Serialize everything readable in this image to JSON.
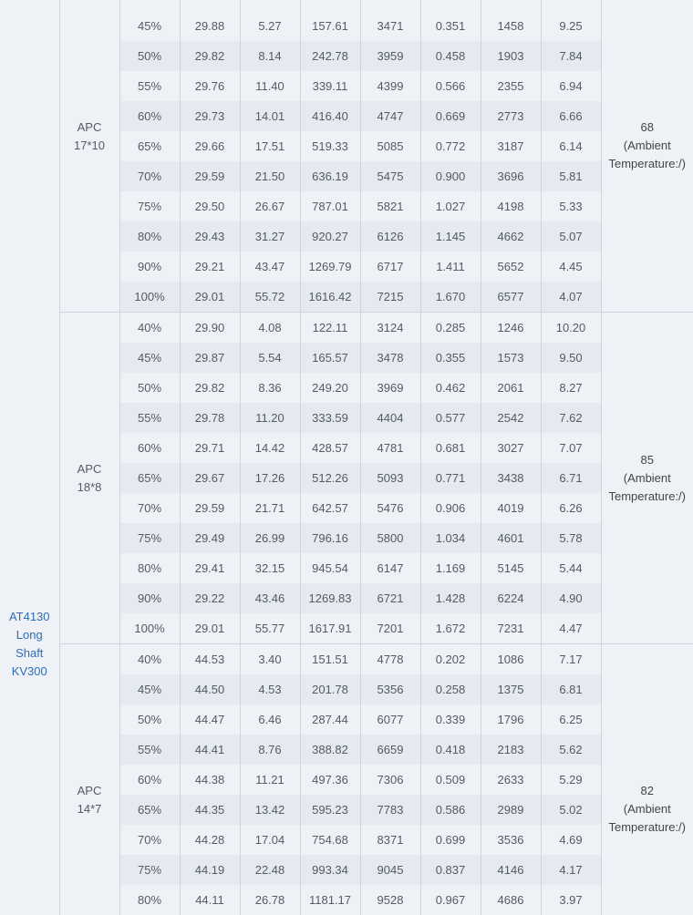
{
  "model": [
    "AT4130",
    "Long",
    "Shaft",
    "KV300"
  ],
  "groups": [
    {
      "prop": [
        "APC",
        "17*10"
      ],
      "temperature": [
        "68",
        "(Ambient",
        "Temperature:/)"
      ],
      "rows": [
        [
          "45%",
          "29.88",
          "5.27",
          "157.61",
          "3471",
          "0.351",
          "1458",
          "9.25"
        ],
        [
          "50%",
          "29.82",
          "8.14",
          "242.78",
          "3959",
          "0.458",
          "1903",
          "7.84"
        ],
        [
          "55%",
          "29.76",
          "11.40",
          "339.11",
          "4399",
          "0.566",
          "2355",
          "6.94"
        ],
        [
          "60%",
          "29.73",
          "14.01",
          "416.40",
          "4747",
          "0.669",
          "2773",
          "6.66"
        ],
        [
          "65%",
          "29.66",
          "17.51",
          "519.33",
          "5085",
          "0.772",
          "3187",
          "6.14"
        ],
        [
          "70%",
          "29.59",
          "21.50",
          "636.19",
          "5475",
          "0.900",
          "3696",
          "5.81"
        ],
        [
          "75%",
          "29.50",
          "26.67",
          "787.01",
          "5821",
          "1.027",
          "4198",
          "5.33"
        ],
        [
          "80%",
          "29.43",
          "31.27",
          "920.27",
          "6126",
          "1.145",
          "4662",
          "5.07"
        ],
        [
          "90%",
          "29.21",
          "43.47",
          "1269.79",
          "6717",
          "1.411",
          "5652",
          "4.45"
        ],
        [
          "100%",
          "29.01",
          "55.72",
          "1616.42",
          "7215",
          "1.670",
          "6577",
          "4.07"
        ]
      ]
    },
    {
      "prop": [
        "APC",
        "18*8"
      ],
      "temperature": [
        "85",
        "(Ambient",
        "Temperature:/)"
      ],
      "rows": [
        [
          "40%",
          "29.90",
          "4.08",
          "122.11",
          "3124",
          "0.285",
          "1246",
          "10.20"
        ],
        [
          "45%",
          "29.87",
          "5.54",
          "165.57",
          "3478",
          "0.355",
          "1573",
          "9.50"
        ],
        [
          "50%",
          "29.82",
          "8.36",
          "249.20",
          "3969",
          "0.462",
          "2061",
          "8.27"
        ],
        [
          "55%",
          "29.78",
          "11.20",
          "333.59",
          "4404",
          "0.577",
          "2542",
          "7.62"
        ],
        [
          "60%",
          "29.71",
          "14.42",
          "428.57",
          "4781",
          "0.681",
          "3027",
          "7.07"
        ],
        [
          "65%",
          "29.67",
          "17.26",
          "512.26",
          "5093",
          "0.771",
          "3438",
          "6.71"
        ],
        [
          "70%",
          "29.59",
          "21.71",
          "642.57",
          "5476",
          "0.906",
          "4019",
          "6.26"
        ],
        [
          "75%",
          "29.49",
          "26.99",
          "796.16",
          "5800",
          "1.034",
          "4601",
          "5.78"
        ],
        [
          "80%",
          "29.41",
          "32.15",
          "945.54",
          "6147",
          "1.169",
          "5145",
          "5.44"
        ],
        [
          "90%",
          "29.22",
          "43.46",
          "1269.83",
          "6721",
          "1.428",
          "6224",
          "4.90"
        ],
        [
          "100%",
          "29.01",
          "55.77",
          "1617.91",
          "7201",
          "1.672",
          "7231",
          "4.47"
        ]
      ]
    },
    {
      "prop": [
        "APC",
        "14*7"
      ],
      "temperature": [
        "82",
        "(Ambient",
        "Temperature:/)"
      ],
      "rows": [
        [
          "40%",
          "44.53",
          "3.40",
          "151.51",
          "4778",
          "0.202",
          "1086",
          "7.17"
        ],
        [
          "45%",
          "44.50",
          "4.53",
          "201.78",
          "5356",
          "0.258",
          "1375",
          "6.81"
        ],
        [
          "50%",
          "44.47",
          "6.46",
          "287.44",
          "6077",
          "0.339",
          "1796",
          "6.25"
        ],
        [
          "55%",
          "44.41",
          "8.76",
          "388.82",
          "6659",
          "0.418",
          "2183",
          "5.62"
        ],
        [
          "60%",
          "44.38",
          "11.21",
          "497.36",
          "7306",
          "0.509",
          "2633",
          "5.29"
        ],
        [
          "65%",
          "44.35",
          "13.42",
          "595.23",
          "7783",
          "0.586",
          "2989",
          "5.02"
        ],
        [
          "70%",
          "44.28",
          "17.04",
          "754.68",
          "8371",
          "0.699",
          "3536",
          "4.69"
        ],
        [
          "75%",
          "44.19",
          "22.48",
          "993.34",
          "9045",
          "0.837",
          "4146",
          "4.17"
        ],
        [
          "80%",
          "44.11",
          "26.78",
          "1181.17",
          "9528",
          "0.967",
          "4686",
          "3.97"
        ]
      ]
    }
  ]
}
